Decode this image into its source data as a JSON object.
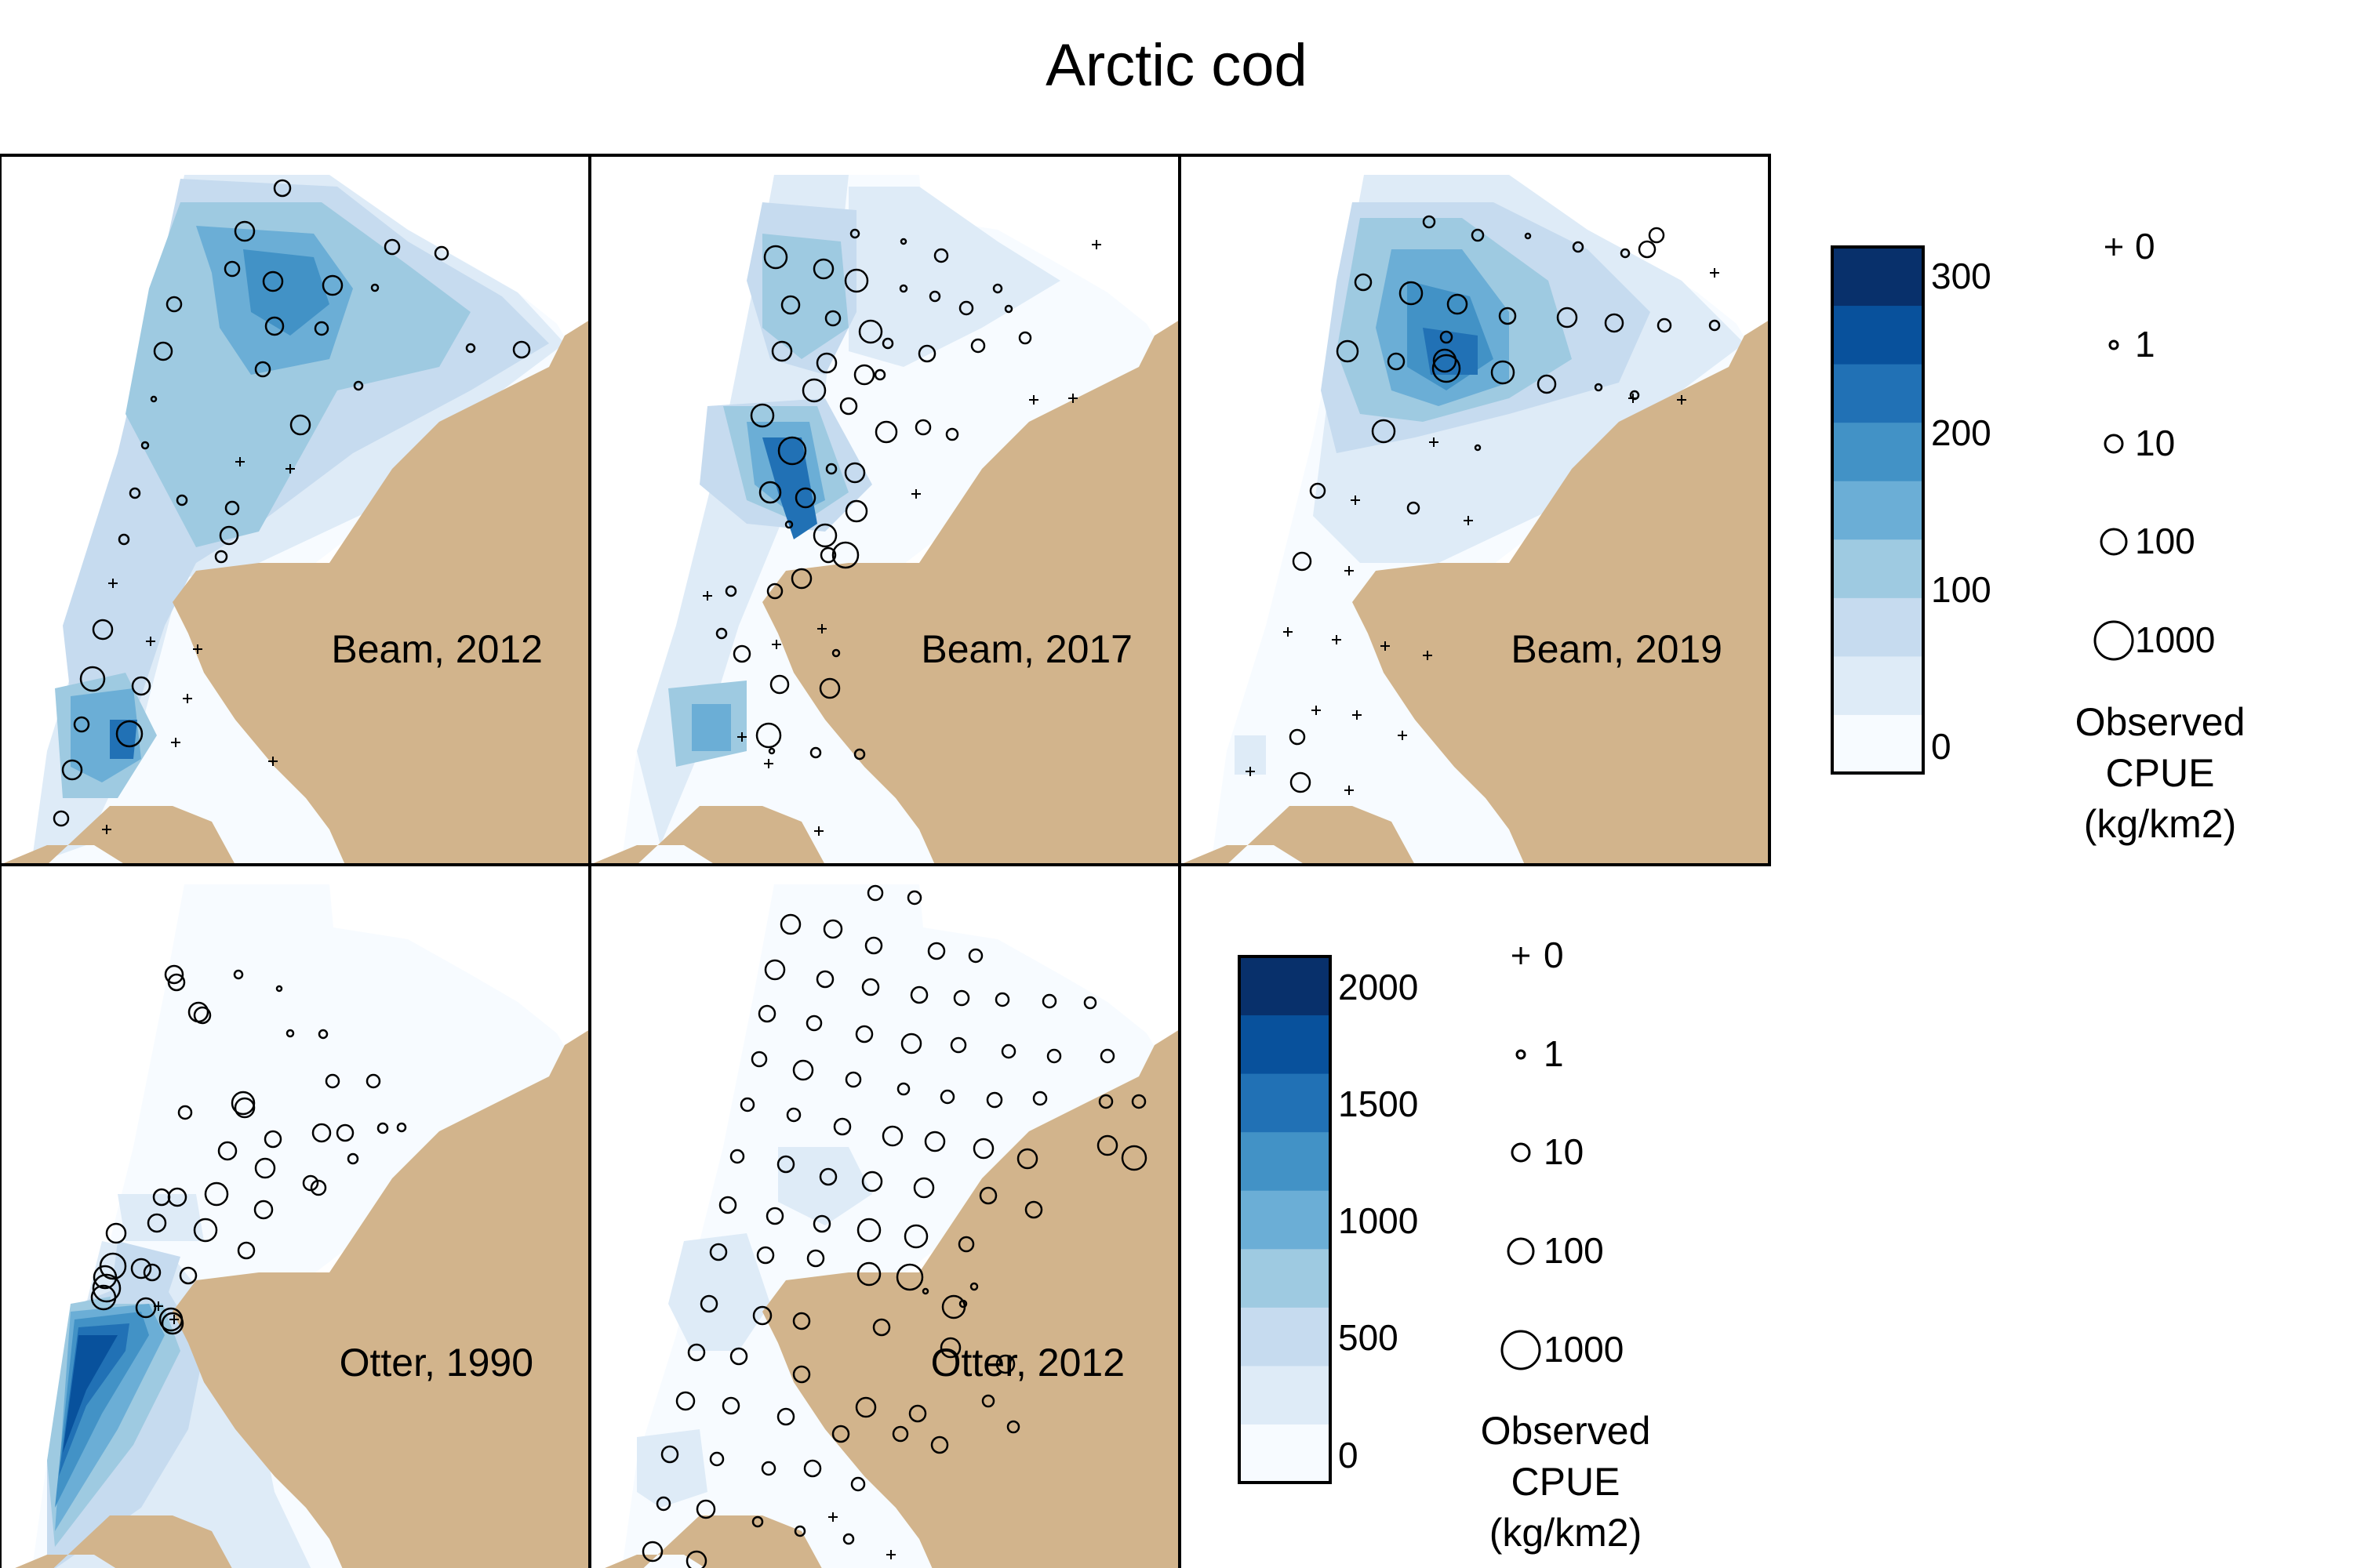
{
  "title": "Arctic cod",
  "colors": {
    "land": "#d2b48c",
    "scale": [
      "#f7fbff",
      "#deebf7",
      "#c6dbef",
      "#9ecae1",
      "#6baed6",
      "#4292c6",
      "#2171b5",
      "#08519c",
      "#08306b"
    ]
  },
  "panels": [
    {
      "label": "Beam, 2012",
      "scale": "beam"
    },
    {
      "label": "Beam, 2017",
      "scale": "beam"
    },
    {
      "label": "Beam, 2019",
      "scale": "beam"
    },
    {
      "label": "Otter, 1990",
      "scale": "otter"
    },
    {
      "label": "Otter, 2012",
      "scale": "otter"
    }
  ],
  "beam_colorbar": {
    "ticks": [
      "300",
      "200",
      "100",
      "0"
    ],
    "tick_values": [
      300,
      200,
      100,
      0
    ],
    "range": [
      0,
      320
    ]
  },
  "otter_colorbar": {
    "ticks": [
      "2000",
      "1500",
      "1000",
      "500",
      "0"
    ],
    "tick_values": [
      2000,
      1500,
      1000,
      500,
      0
    ],
    "range": [
      0,
      2100
    ]
  },
  "size_legend": {
    "items": [
      "0",
      "1",
      "10",
      "100",
      "1000"
    ],
    "title_lines": [
      "Observed",
      "CPUE",
      "(kg/km2)"
    ]
  }
}
